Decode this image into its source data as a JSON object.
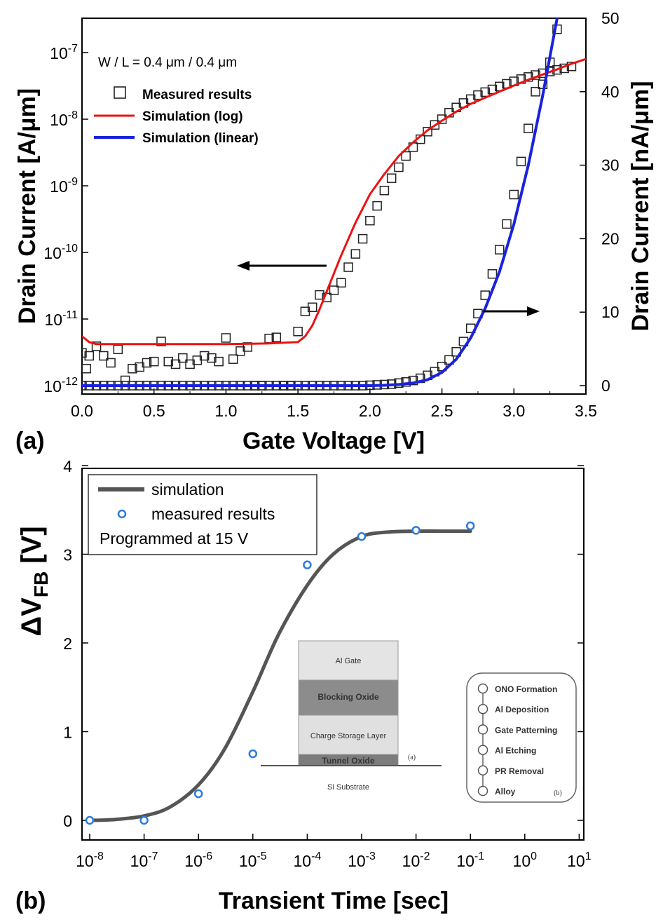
{
  "chart_data": [
    {
      "panel_label": "(a)",
      "type": "scatter",
      "annotation": "W / L = 0.4 μm / 0.4 μm",
      "xlabel": "Gate Voltage [V]",
      "ylabel": "Drain Current [A/μm]",
      "y2label": "Drain Current [nA/μm]",
      "xlim": [
        0,
        3.5
      ],
      "ylim_log_exponent": [
        -12,
        -6.55
      ],
      "y2lim": [
        0,
        50
      ],
      "xticks": [
        "0.0",
        "0.5",
        "1.0",
        "1.5",
        "2.0",
        "2.5",
        "3.0",
        "3.5"
      ],
      "yticks": [
        {
          "base": "10",
          "exp": "-12"
        },
        {
          "base": "10",
          "exp": "-11"
        },
        {
          "base": "10",
          "exp": "-10"
        },
        {
          "base": "10",
          "exp": "-9"
        },
        {
          "base": "10",
          "exp": "-8"
        },
        {
          "base": "10",
          "exp": "-7"
        }
      ],
      "y2ticks": [
        "0",
        "10",
        "20",
        "30",
        "40",
        "50"
      ],
      "legend": {
        "position": "top-left",
        "entries": [
          {
            "label": "Measured results",
            "marker": "open-square",
            "color": "#222222"
          },
          {
            "label": "Simulation (log)",
            "marker": "line",
            "color": "#ee1111"
          },
          {
            "label": "Simulation (linear)",
            "marker": "line",
            "color": "#1a22dd"
          }
        ]
      },
      "series": [
        {
          "name": "Measured results",
          "axis": "left-log",
          "x": [
            0.0,
            0.03,
            0.05,
            0.1,
            0.15,
            0.2,
            0.25,
            0.3,
            0.35,
            0.4,
            0.45,
            0.5,
            0.55,
            0.6,
            0.65,
            0.7,
            0.75,
            0.8,
            0.85,
            0.9,
            0.95,
            1.0,
            1.05,
            1.1,
            1.15,
            1.2,
            1.25,
            1.3,
            1.35,
            1.4,
            1.45,
            1.5,
            1.55,
            1.6,
            1.65,
            1.7,
            1.75,
            1.8,
            1.85,
            1.9,
            1.95,
            2.0,
            2.05,
            2.1,
            2.15,
            2.2,
            2.25,
            2.3,
            2.35,
            2.4,
            2.45,
            2.5,
            2.55,
            2.6,
            2.65,
            2.7,
            2.75,
            2.8,
            2.85,
            2.9,
            2.95,
            3.0,
            3.05,
            3.1,
            3.15,
            3.2,
            3.25,
            3.3,
            3.35,
            3.4
          ],
          "y": [
            3.1e-12,
            1.8e-12,
            2.8e-12,
            3.9e-12,
            2.8e-12,
            2.2e-12,
            3.5e-12,
            1.2e-12,
            1.8e-12,
            1.9e-12,
            2.2e-12,
            2.3e-12,
            4.6e-12,
            2.3e-12,
            2.1e-12,
            2.6e-12,
            2.1e-12,
            2.4e-12,
            2.8e-12,
            2.6e-12,
            2.3e-12,
            5.2e-12,
            2.5e-12,
            3.3e-12,
            3.8e-12,
            1e-12,
            1e-12,
            5.1e-12,
            5.3e-12,
            1e-12,
            1e-12,
            6.5e-12,
            1.3e-11,
            1.5e-11,
            2.3e-11,
            2.1e-11,
            2.7e-11,
            3.5e-11,
            6e-11,
            9.5e-11,
            1.6e-10,
            3e-10,
            5e-10,
            8.5e-10,
            1.3e-09,
            1.9e-09,
            2.8e-09,
            3.8e-09,
            5e-09,
            6.5e-09,
            8.2e-09,
            1e-08,
            1.25e-08,
            1.5e-08,
            1.75e-08,
            2e-08,
            2.3e-08,
            2.55e-08,
            2.8e-08,
            3.1e-08,
            3.4e-08,
            3.7e-08,
            4e-08,
            4.3e-08,
            4.6e-08,
            4.9e-08,
            5.2e-08,
            5.5e-08,
            5.8e-08,
            6.2e-08
          ]
        },
        {
          "name": "Measured results",
          "axis": "right-linear",
          "x": [
            0.0,
            0.05,
            0.1,
            0.15,
            0.2,
            0.25,
            0.3,
            0.35,
            0.4,
            0.45,
            0.5,
            0.55,
            0.6,
            0.65,
            0.7,
            0.75,
            0.8,
            0.85,
            0.9,
            0.95,
            1.0,
            1.05,
            1.1,
            1.15,
            1.2,
            1.25,
            1.3,
            1.35,
            1.4,
            1.45,
            1.5,
            1.55,
            1.6,
            1.65,
            1.7,
            1.75,
            1.8,
            1.85,
            1.9,
            1.95,
            2.0,
            2.05,
            2.1,
            2.15,
            2.2,
            2.25,
            2.3,
            2.35,
            2.4,
            2.45,
            2.5,
            2.55,
            2.6,
            2.65,
            2.7,
            2.75,
            2.8,
            2.85,
            2.9,
            2.95,
            3.0,
            3.05,
            3.1,
            3.15,
            3.2,
            3.25,
            3.3
          ],
          "y": [
            0,
            0,
            0,
            0,
            0,
            0,
            0,
            0,
            0,
            0,
            0,
            0,
            0,
            0,
            0,
            0,
            0,
            0,
            0,
            0,
            0,
            0,
            0,
            0,
            0,
            0,
            0,
            0,
            0,
            0,
            0,
            0,
            0,
            0,
            0,
            0,
            0,
            0,
            0,
            0,
            0.05,
            0.1,
            0.15,
            0.2,
            0.35,
            0.5,
            0.7,
            1.0,
            1.4,
            1.9,
            2.6,
            3.5,
            4.6,
            6.0,
            7.8,
            9.8,
            12.3,
            15.2,
            18.5,
            22.0,
            26.0,
            30.5,
            35.0,
            40.0,
            41.0,
            44.0,
            48.5
          ]
        },
        {
          "name": "Simulation (log)",
          "axis": "left-log",
          "x": [
            0.0,
            0.05,
            0.1,
            0.2,
            0.5,
            1.0,
            1.3,
            1.5,
            1.55,
            1.6,
            1.65,
            1.7,
            1.8,
            1.9,
            2.0,
            2.1,
            2.2,
            2.3,
            2.4,
            2.5,
            2.6,
            2.7,
            2.8,
            2.9,
            3.0,
            3.1,
            3.2,
            3.3,
            3.4,
            3.5
          ],
          "y": [
            5.5e-12,
            4.5e-12,
            4.2e-12,
            4.2e-12,
            4.2e-12,
            4.2e-12,
            4.3e-12,
            4.5e-12,
            5.5e-12,
            8e-12,
            1.4e-11,
            2.6e-11,
            9e-11,
            2.8e-10,
            7.5e-10,
            1.5e-09,
            2.8e-09,
            4.5e-09,
            6.8e-09,
            9.5e-09,
            1.3e-08,
            1.7e-08,
            2.1e-08,
            2.6e-08,
            3.2e-08,
            3.9e-08,
            4.7e-08,
            5.6e-08,
            6.8e-08,
            8e-08
          ]
        },
        {
          "name": "Simulation (linear)",
          "axis": "right-linear",
          "x": [
            0.0,
            0.5,
            1.0,
            1.5,
            2.0,
            2.1,
            2.2,
            2.3,
            2.4,
            2.5,
            2.6,
            2.7,
            2.8,
            2.9,
            3.0,
            3.1,
            3.2,
            3.3
          ],
          "y": [
            0,
            0,
            0,
            0,
            0,
            0.05,
            0.15,
            0.35,
            0.8,
            1.8,
            3.6,
            6.5,
            10.5,
            15.5,
            22.0,
            30.0,
            39.5,
            50.0
          ]
        }
      ]
    },
    {
      "panel_label": "(b)",
      "type": "line",
      "xlabel": "Transient Time [sec]",
      "ylabel": "ΔV",
      "ylabel_subscript": "FB",
      "ylabel_suffix": " [V]",
      "x_scale": "log",
      "xlim_exponent": [
        -8,
        1
      ],
      "ylim": [
        -0.1,
        4
      ],
      "xticks": [
        {
          "base": "10",
          "exp": "-8"
        },
        {
          "base": "10",
          "exp": "-7"
        },
        {
          "base": "10",
          "exp": "-6"
        },
        {
          "base": "10",
          "exp": "-5"
        },
        {
          "base": "10",
          "exp": "-4"
        },
        {
          "base": "10",
          "exp": "-3"
        },
        {
          "base": "10",
          "exp": "-2"
        },
        {
          "base": "10",
          "exp": "-1"
        },
        {
          "base": "10",
          "exp": "0"
        },
        {
          "base": "10",
          "exp": "1"
        }
      ],
      "yticks": [
        "0",
        "1",
        "2",
        "3",
        "4"
      ],
      "legend": {
        "position": "top-left",
        "entries": [
          {
            "label": "simulation",
            "marker": "line",
            "color": "#555555"
          },
          {
            "label": "measured results",
            "marker": "open-circle",
            "color": "#2a7bde"
          }
        ],
        "note": "Programmed at 15 V"
      },
      "series": [
        {
          "name": "simulation",
          "x": [
            1e-08,
            3e-08,
            1e-07,
            3e-07,
            1e-06,
            3e-06,
            1e-05,
            3e-05,
            0.0001,
            0.0003,
            0.001,
            0.003,
            0.01,
            0.03,
            0.1
          ],
          "y": [
            0.0,
            0.01,
            0.05,
            0.15,
            0.4,
            0.8,
            1.45,
            2.1,
            2.65,
            3.0,
            3.2,
            3.25,
            3.26,
            3.26,
            3.26
          ]
        },
        {
          "name": "measured results",
          "x": [
            1e-08,
            1e-07,
            1e-06,
            1e-05,
            0.0001,
            0.001,
            0.01,
            0.1
          ],
          "y": [
            0.0,
            0.0,
            0.3,
            0.75,
            2.88,
            3.2,
            3.27,
            3.32
          ]
        }
      ],
      "inset": {
        "layers": [
          "Al Gate",
          "Blocking Oxide",
          "Charge Storage Layer",
          "Tunnel Oxide",
          "Si Substrate"
        ],
        "layers_label": "(a)",
        "steps": [
          "ONO Formation",
          "Al Deposition",
          "Gate Patterning",
          "Al Etching",
          "PR Removal",
          "Alloy"
        ],
        "steps_label": "(b)"
      }
    }
  ]
}
